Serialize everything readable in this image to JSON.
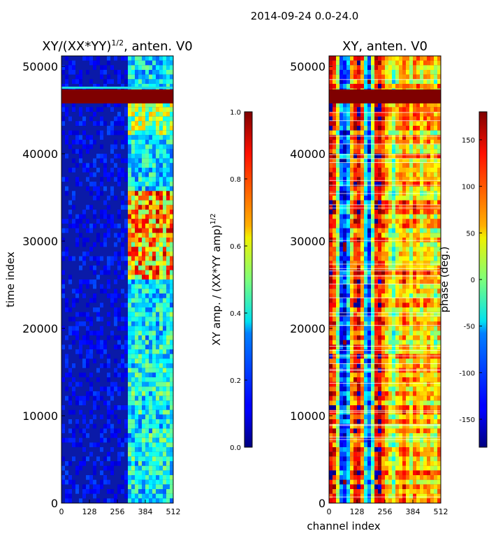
{
  "figure_title": "2014-09-24 0.0-24.0",
  "xlabel": "channel index",
  "chart_data": [
    {
      "type": "heatmap",
      "title_base": "XY/(XX*YY)",
      "title_exp": "1/2",
      "title_tail": ", anten. V0",
      "ylabel": "time index",
      "xlabel": "",
      "xlim": [
        0,
        512
      ],
      "ylim": [
        0,
        51200
      ],
      "xticks": [
        0,
        128,
        256,
        384,
        512
      ],
      "yticks": [
        0,
        10000,
        20000,
        30000,
        40000,
        50000
      ],
      "colorbar": {
        "label_base": "XY amp. / (XX*YY amp)",
        "label_exp": "1/2",
        "range": [
          0.0,
          1.0
        ],
        "ticks": [
          "0.0",
          "0.2",
          "0.4",
          "0.6",
          "0.8",
          "1.0"
        ]
      }
    },
    {
      "type": "heatmap",
      "title": "XY, anten. V0",
      "xlabel": "channel index",
      "xlim": [
        0,
        512
      ],
      "ylim": [
        0,
        51200
      ],
      "xticks": [
        0,
        128,
        256,
        384,
        512
      ],
      "yticks": [
        0,
        10000,
        20000,
        30000,
        40000,
        50000
      ],
      "colorbar": {
        "label": "phase (deg.)",
        "range": [
          -180,
          180
        ],
        "ticks": [
          -150,
          -100,
          -50,
          0,
          50,
          100,
          150
        ]
      }
    }
  ]
}
